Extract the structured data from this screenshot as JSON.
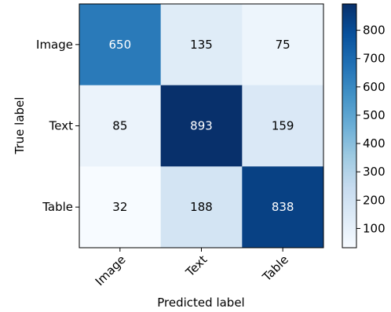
{
  "chart_data": {
    "type": "heatmap",
    "title": "",
    "xlabel": "Predicted label",
    "ylabel": "True label",
    "x_categories": [
      "Image",
      "Text",
      "Table"
    ],
    "y_categories": [
      "Image",
      "Text",
      "Table"
    ],
    "values": [
      [
        650,
        135,
        75
      ],
      [
        85,
        893,
        159
      ],
      [
        32,
        188,
        838
      ]
    ],
    "colormap": "Blues",
    "color_min": "#f7fbff",
    "color_max": "#08306b",
    "value_range": [
      32,
      893
    ],
    "colorbar_ticks": [
      100,
      200,
      300,
      400,
      500,
      600,
      700,
      800
    ],
    "grid": false
  }
}
